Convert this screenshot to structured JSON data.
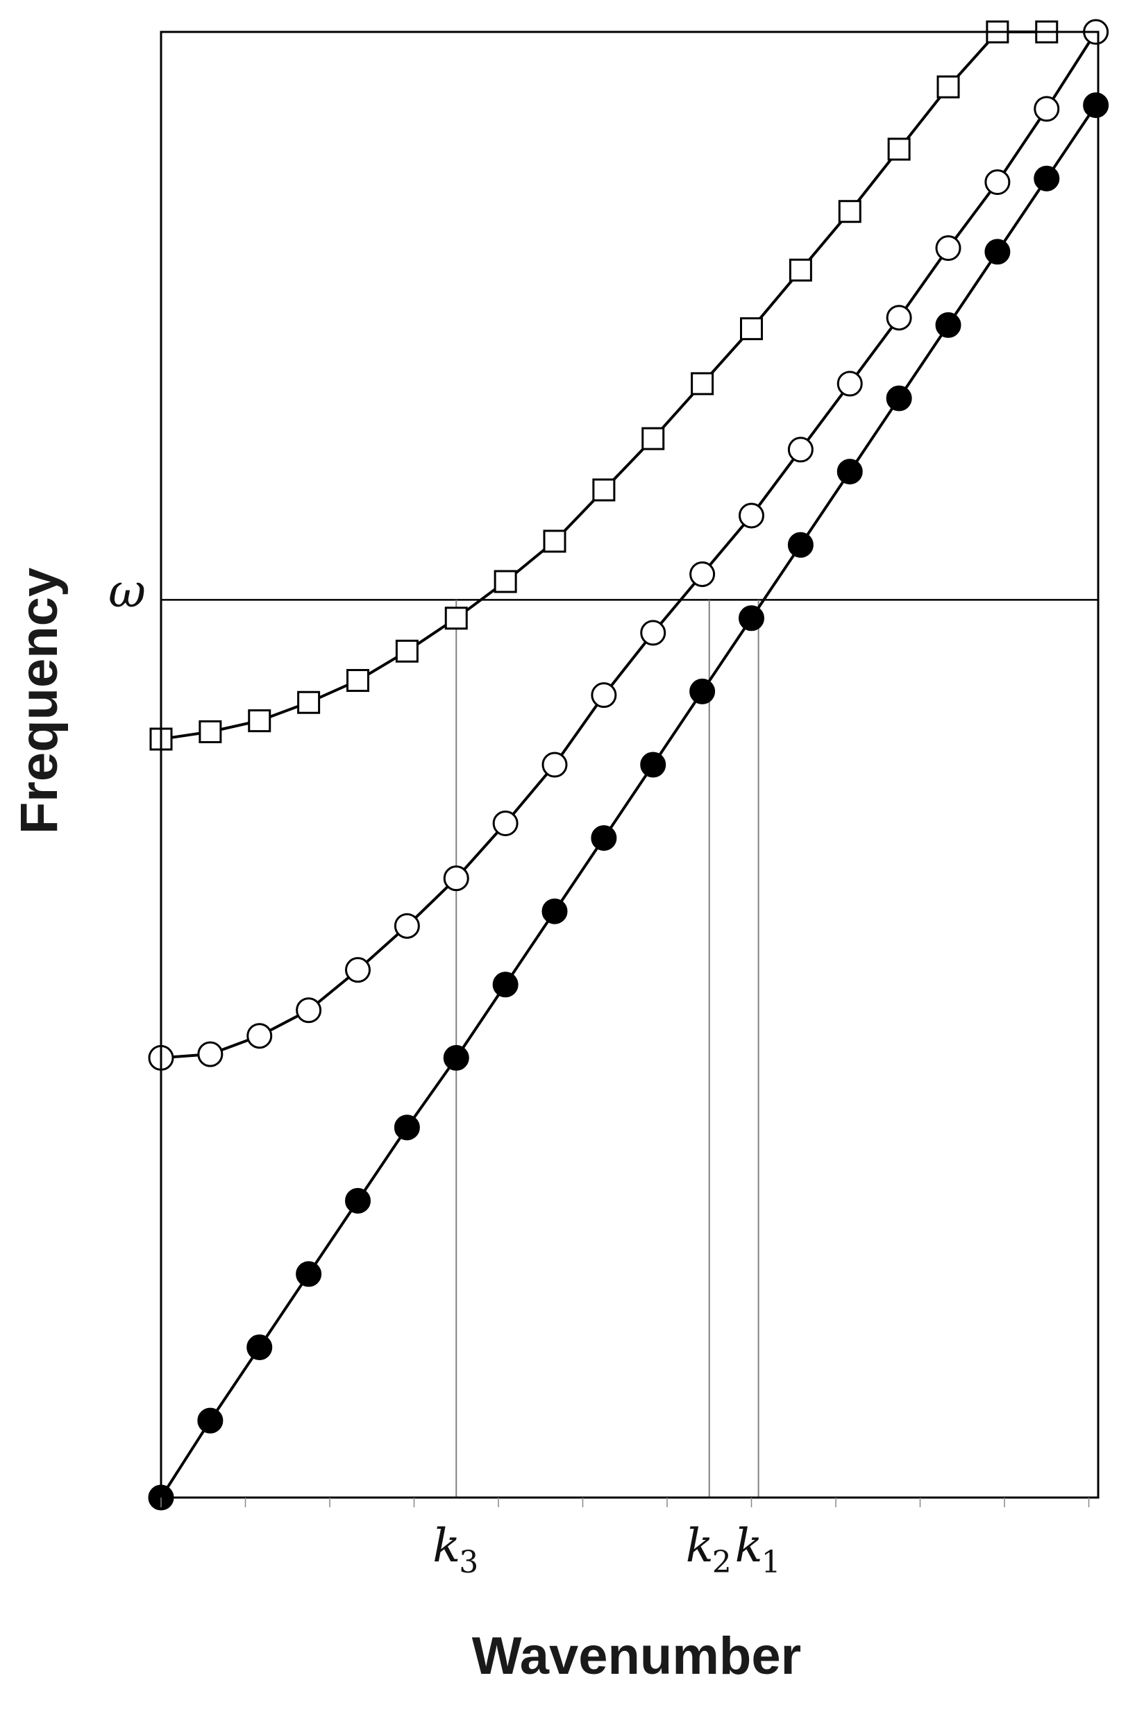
{
  "chart_data": {
    "type": "line",
    "title": "",
    "xlabel": "Wavenumber",
    "ylabel": "Frequency",
    "xlim": [
      0,
      20
    ],
    "ylim": [
      0,
      20
    ],
    "grid": false,
    "colors": {
      "line": "#000000",
      "guide": "#808080",
      "frame": "#000000"
    },
    "horizontal_line": {
      "label": "ω",
      "y": 12.25
    },
    "x_markers": [
      {
        "label": "k",
        "sub": "3",
        "x": 6.3
      },
      {
        "label": "k",
        "sub": "2",
        "x": 11.7
      },
      {
        "label": "k",
        "sub": "1",
        "x": 12.75
      }
    ],
    "series": [
      {
        "marker": "filled-circle",
        "x": [
          0,
          1.05,
          2.1,
          3.15,
          4.2,
          5.25,
          6.3,
          7.35,
          8.4,
          9.45,
          10.5,
          11.55,
          12.6,
          13.65,
          14.7,
          15.75,
          16.8,
          17.85,
          18.9,
          19.95
        ],
        "y": [
          0,
          1.05,
          2.05,
          3.05,
          4.05,
          5.05,
          6.0,
          7.0,
          8.0,
          9.0,
          10.0,
          11.0,
          12.0,
          13.0,
          14.0,
          15.0,
          16.0,
          17.0,
          18.0,
          19.0
        ]
      },
      {
        "marker": "open-circle",
        "x": [
          0,
          1.05,
          2.1,
          3.15,
          4.2,
          5.25,
          6.3,
          7.35,
          8.4,
          9.45,
          10.5,
          11.55,
          12.6,
          13.65,
          14.7,
          15.75,
          16.8,
          17.85,
          18.9,
          19.95
        ],
        "y": [
          6.0,
          6.05,
          6.3,
          6.65,
          7.2,
          7.8,
          8.45,
          9.2,
          10.0,
          10.95,
          11.8,
          12.6,
          13.4,
          14.3,
          15.2,
          16.1,
          17.05,
          17.95,
          18.95,
          20.0
        ]
      },
      {
        "marker": "open-square",
        "x": [
          0,
          1.05,
          2.1,
          3.15,
          4.2,
          5.25,
          6.3,
          7.35,
          8.4,
          9.45,
          10.5,
          11.55,
          12.6,
          13.65,
          14.7,
          15.75,
          16.8,
          17.85,
          18.9
        ],
        "y": [
          10.35,
          10.45,
          10.6,
          10.85,
          11.15,
          11.55,
          12.0,
          12.5,
          13.05,
          13.75,
          14.45,
          15.2,
          15.95,
          16.75,
          17.55,
          18.4,
          19.25,
          20.0,
          20.0
        ]
      }
    ]
  }
}
